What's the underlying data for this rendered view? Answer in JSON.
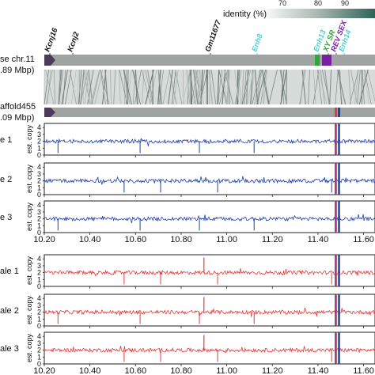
{
  "identity": {
    "label": "identity (%)",
    "ticks": [
      "70",
      "80",
      "90"
    ]
  },
  "tracks": {
    "chr_label_1": "se chr.11",
    "chr_label_2": ".89 Mbp)",
    "scaffold_label_1": "affold455",
    "scaffold_label_2": ".09 Mbp)"
  },
  "genes": [
    {
      "label": "Kcnj16",
      "color": "#111111"
    },
    {
      "label": "Kcnj2",
      "color": "#111111"
    },
    {
      "label": "Gm11677",
      "color": "#111111"
    },
    {
      "label": "Enh8",
      "color": "#4fd1d1"
    },
    {
      "label": "Enh13",
      "color": "#4fd1d1"
    },
    {
      "label": "XY SR",
      "color": "#2fa53a"
    },
    {
      "label": "REV SEX",
      "color": "#7b1fa2"
    },
    {
      "label": "Enh14",
      "color": "#4fd1d1"
    }
  ],
  "panels": {
    "y_axis_label": "est. copy",
    "y_ticks": [
      "0",
      "1",
      "2",
      "3",
      "4"
    ],
    "x_ticks": [
      "10.20",
      "10.40",
      "10.60",
      "10.80",
      "11.00",
      "11.20",
      "11.40",
      "11.60"
    ],
    "blue_color": "#1f3fb0",
    "red_color": "#e23b3b",
    "samples": [
      {
        "label": "e 1",
        "color": "blue"
      },
      {
        "label": "e 2",
        "color": "blue"
      },
      {
        "label": "e 3",
        "color": "blue"
      },
      {
        "label": "ale 1",
        "color": "red"
      },
      {
        "label": "ale 2",
        "color": "red"
      },
      {
        "label": "ale 3",
        "color": "red"
      }
    ]
  }
}
